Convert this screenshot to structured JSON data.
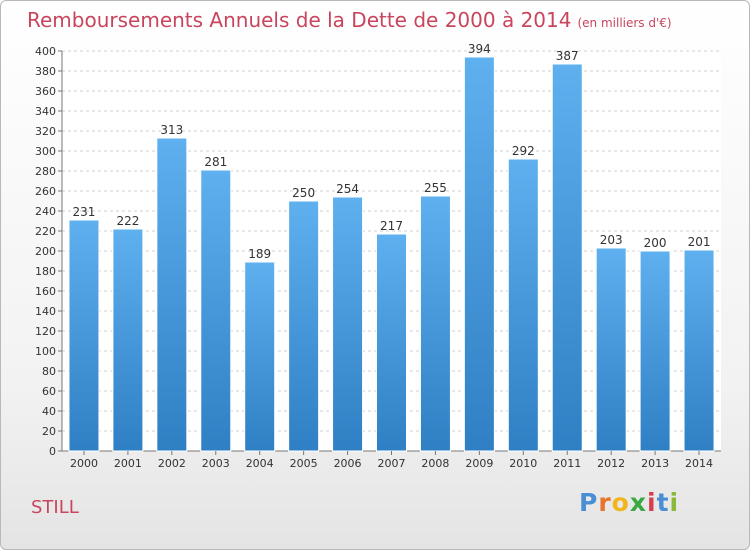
{
  "title": "Remboursements Annuels de la Dette de 2000 à 2014",
  "subtitle": "(en milliers d'€)",
  "commune": "STILL",
  "logo": {
    "letters": [
      "P",
      "r",
      "o",
      "x",
      "i",
      "t",
      "i"
    ]
  },
  "chart_data": {
    "type": "bar",
    "categories": [
      "2000",
      "2001",
      "2002",
      "2003",
      "2004",
      "2005",
      "2006",
      "2007",
      "2008",
      "2009",
      "2010",
      "2011",
      "2012",
      "2013",
      "2014"
    ],
    "values": [
      231,
      222,
      313,
      281,
      189,
      250,
      254,
      217,
      255,
      394,
      292,
      387,
      203,
      200,
      201
    ],
    "ylim": [
      0,
      400
    ],
    "ytick_step": 20,
    "grid": true,
    "bar_color": "#4a9ee2",
    "title": "Remboursements Annuels de la Dette de 2000 à 2014",
    "xlabel": "",
    "ylabel": ""
  }
}
